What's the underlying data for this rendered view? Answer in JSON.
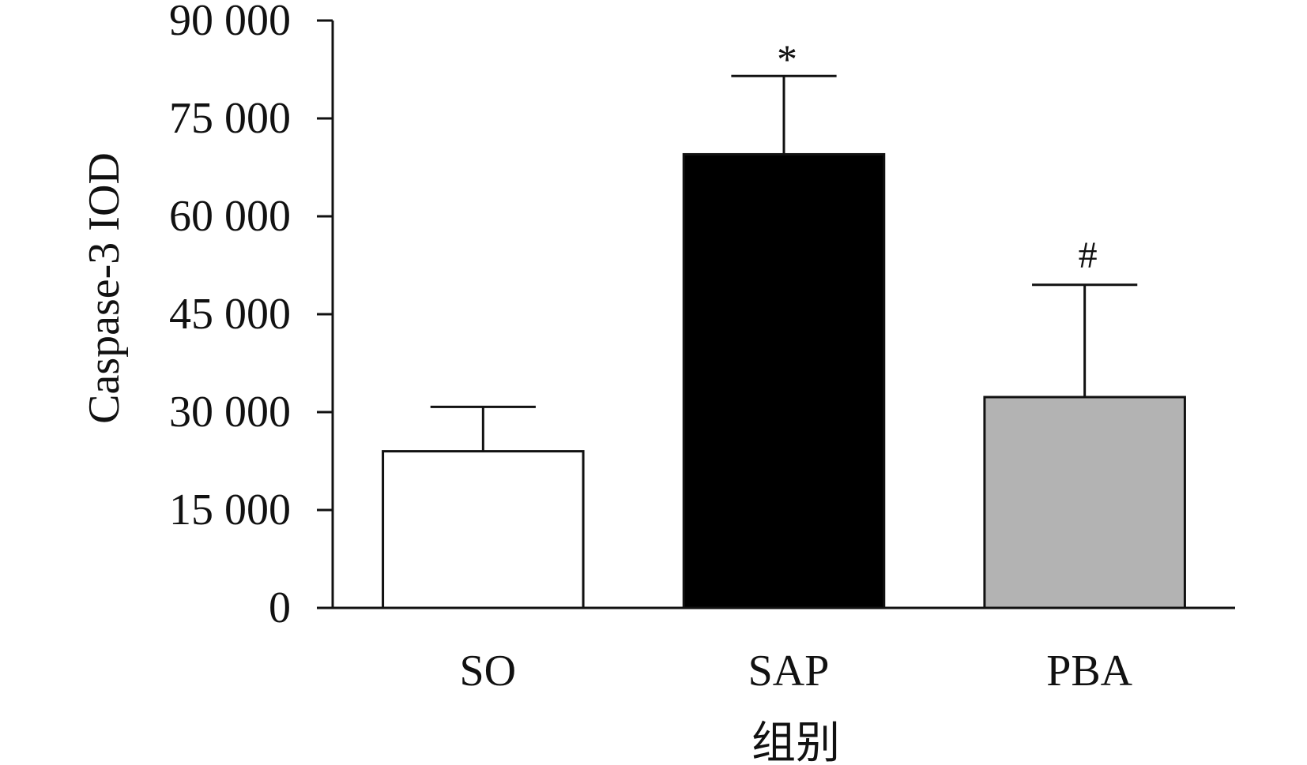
{
  "chart_data": {
    "type": "bar",
    "categories": [
      "SO",
      "SAP",
      "PBA"
    ],
    "series": [
      {
        "values": [
          24000,
          69500,
          32300
        ],
        "errors": [
          6800,
          12000,
          17200
        ],
        "colors": [
          "#ffffff",
          "#000000",
          "#b3b3b3"
        ]
      }
    ],
    "annotations": [
      "",
      "*",
      "#"
    ],
    "xlabel": "组别",
    "ylabel": "Caspase-3 IOD",
    "ylim": [
      0,
      90000
    ],
    "yticks": [
      0,
      15000,
      30000,
      45000,
      60000,
      75000,
      90000
    ],
    "ytick_labels": [
      "0",
      "15 000",
      "30 000",
      "45 000",
      "60 000",
      "75 000",
      "90 000"
    ],
    "grid": false,
    "legend": "none"
  }
}
